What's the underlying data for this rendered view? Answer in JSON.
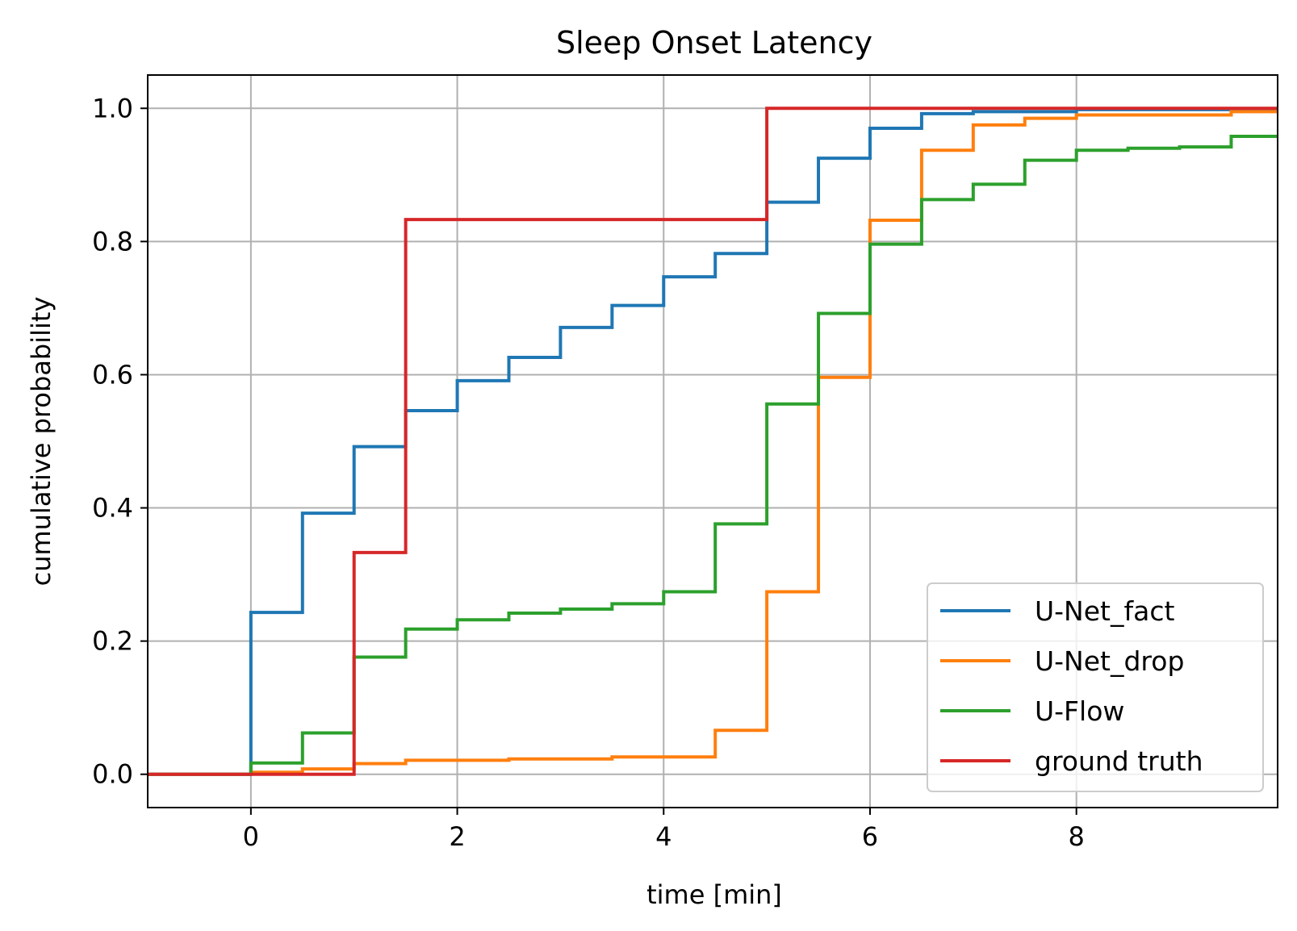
{
  "chart_data": {
    "type": "line",
    "step": "post",
    "title": "Sleep Onset Latency",
    "xlabel": "time [min]",
    "ylabel": "cumulative probability",
    "xlim": [
      -1,
      9.95
    ],
    "ylim": [
      -0.05,
      1.05
    ],
    "x_ticks": [
      0,
      2,
      4,
      6,
      8
    ],
    "x_tick_labels": [
      "0",
      "2",
      "4",
      "6",
      "8"
    ],
    "y_ticks": [
      0.0,
      0.2,
      0.4,
      0.6,
      0.8,
      1.0
    ],
    "y_tick_labels": [
      "0.0",
      "0.2",
      "0.4",
      "0.6",
      "0.8",
      "1.0"
    ],
    "grid": true,
    "legend_position": "lower-right",
    "series": [
      {
        "name": "U-Net_fact",
        "color": "#1f77b4",
        "x": [
          -1,
          0,
          0.5,
          1.0,
          1.5,
          2.0,
          2.5,
          3.0,
          3.5,
          4.0,
          4.5,
          5.0,
          5.5,
          6.0,
          6.5,
          7.0,
          8.0,
          9.95
        ],
        "y": [
          0.0,
          0.243,
          0.392,
          0.492,
          0.546,
          0.591,
          0.626,
          0.671,
          0.704,
          0.747,
          0.782,
          0.859,
          0.925,
          0.97,
          0.992,
          0.995,
          0.998,
          0.998
        ]
      },
      {
        "name": "U-Net_drop",
        "color": "#ff7f0e",
        "x": [
          -1,
          0,
          0.5,
          1.0,
          1.5,
          2.5,
          3.5,
          4.5,
          5.0,
          5.5,
          6.0,
          6.5,
          7.0,
          7.5,
          8.0,
          9.5,
          9.95
        ],
        "y": [
          0.0,
          0.003,
          0.008,
          0.016,
          0.021,
          0.023,
          0.026,
          0.066,
          0.274,
          0.596,
          0.832,
          0.937,
          0.975,
          0.985,
          0.99,
          0.995,
          0.995
        ]
      },
      {
        "name": "U-Flow",
        "color": "#2ca02c",
        "x": [
          -1,
          0,
          0.5,
          1.0,
          1.5,
          2.0,
          2.5,
          3.0,
          3.5,
          4.0,
          4.5,
          5.0,
          5.5,
          6.0,
          6.5,
          7.0,
          7.5,
          8.0,
          8.5,
          9.0,
          9.5,
          9.95
        ],
        "y": [
          0.0,
          0.017,
          0.062,
          0.176,
          0.218,
          0.232,
          0.242,
          0.248,
          0.256,
          0.274,
          0.376,
          0.556,
          0.692,
          0.796,
          0.863,
          0.886,
          0.922,
          0.937,
          0.94,
          0.942,
          0.958,
          0.958
        ]
      },
      {
        "name": "ground truth",
        "color": "#d62728",
        "x": [
          -1,
          1.0,
          1.5,
          5.0,
          9.95
        ],
        "y": [
          0.0,
          0.333,
          0.833,
          1.0,
          1.0
        ]
      }
    ]
  }
}
